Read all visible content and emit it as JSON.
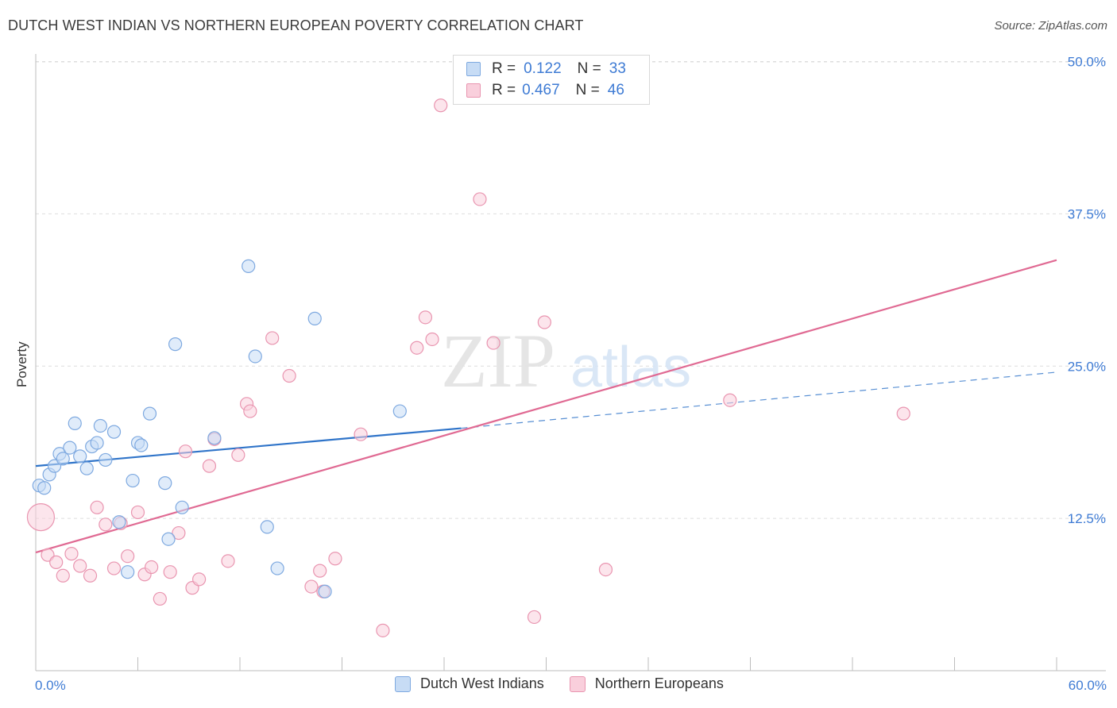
{
  "header": {
    "title": "DUTCH WEST INDIAN VS NORTHERN EUROPEAN POVERTY CORRELATION CHART",
    "source": "Source: ZipAtlas.com"
  },
  "legend": {
    "series1": {
      "r_label": "R =",
      "r_value": "0.122",
      "n_label": "N =",
      "n_value": "33"
    },
    "series2": {
      "r_label": "R =",
      "r_value": "0.467",
      "n_label": "N =",
      "n_value": "46"
    }
  },
  "bottom_legend": {
    "series1_label": "Dutch West Indians",
    "series2_label": "Northern Europeans"
  },
  "watermark": {
    "zip": "ZIP",
    "atlas": "atlas"
  },
  "colors": {
    "blue_fill": "#c7dcf5",
    "blue_stroke": "#7ea9e0",
    "blue_line": "#2f74c9",
    "pink_fill": "#f9cfdc",
    "pink_stroke": "#e995b0",
    "pink_line": "#e06a93",
    "tick_text": "#3e7bd4"
  },
  "chart_data": {
    "type": "scatter",
    "title": "DUTCH WEST INDIAN VS NORTHERN EUROPEAN POVERTY CORRELATION CHART",
    "xlabel": "",
    "ylabel": "Poverty",
    "xlim": [
      0,
      60
    ],
    "ylim": [
      0,
      52
    ],
    "x_tick_labels": [
      "0.0%",
      "60.0%"
    ],
    "y_ticks": [
      12.5,
      25.0,
      37.5,
      50.0
    ],
    "y_tick_labels": [
      "12.5%",
      "25.0%",
      "37.5%",
      "50.0%"
    ],
    "grid": true,
    "legend_position": "top-center",
    "series": [
      {
        "name": "Dutch West Indians",
        "r": 0.122,
        "n": 33,
        "trend": {
          "x0": 0,
          "y0": 16.8,
          "x1": 25,
          "y1": 19.9,
          "dashed_to_x": 60,
          "dashed_to_y": 24.5
        },
        "points": [
          [
            0.2,
            15.2
          ],
          [
            0.5,
            15.0
          ],
          [
            0.8,
            16.1
          ],
          [
            1.1,
            16.8
          ],
          [
            1.4,
            17.8
          ],
          [
            1.6,
            17.4
          ],
          [
            2.0,
            18.3
          ],
          [
            2.3,
            20.3
          ],
          [
            2.6,
            17.6
          ],
          [
            3.0,
            16.6
          ],
          [
            3.3,
            18.4
          ],
          [
            3.6,
            18.7
          ],
          [
            3.8,
            20.1
          ],
          [
            4.1,
            17.3
          ],
          [
            4.6,
            19.6
          ],
          [
            4.9,
            12.2
          ],
          [
            5.4,
            8.1
          ],
          [
            5.7,
            15.6
          ],
          [
            6.0,
            18.7
          ],
          [
            6.2,
            18.5
          ],
          [
            6.7,
            21.1
          ],
          [
            7.6,
            15.4
          ],
          [
            7.8,
            10.8
          ],
          [
            8.2,
            26.8
          ],
          [
            8.6,
            13.4
          ],
          [
            10.5,
            19.1
          ],
          [
            12.5,
            33.2
          ],
          [
            12.9,
            25.8
          ],
          [
            13.6,
            11.8
          ],
          [
            14.2,
            8.4
          ],
          [
            16.4,
            28.9
          ],
          [
            17.0,
            6.5
          ],
          [
            21.4,
            21.3
          ]
        ]
      },
      {
        "name": "Northern Europeans",
        "r": 0.467,
        "n": 46,
        "trend": {
          "x0": 0,
          "y0": 9.7,
          "x1": 60,
          "y1": 33.7
        },
        "points": [
          [
            0.3,
            12.6
          ],
          [
            0.7,
            9.5
          ],
          [
            1.2,
            8.9
          ],
          [
            1.6,
            7.8
          ],
          [
            2.1,
            9.6
          ],
          [
            2.6,
            8.6
          ],
          [
            3.2,
            7.8
          ],
          [
            3.6,
            13.4
          ],
          [
            4.1,
            12.0
          ],
          [
            4.6,
            8.4
          ],
          [
            5.0,
            12.1
          ],
          [
            5.4,
            9.4
          ],
          [
            6.0,
            13.0
          ],
          [
            6.4,
            7.9
          ],
          [
            6.8,
            8.5
          ],
          [
            7.3,
            5.9
          ],
          [
            7.9,
            8.1
          ],
          [
            8.4,
            11.3
          ],
          [
            8.8,
            18.0
          ],
          [
            9.2,
            6.8
          ],
          [
            9.6,
            7.5
          ],
          [
            10.2,
            16.8
          ],
          [
            10.5,
            19.0
          ],
          [
            11.3,
            9.0
          ],
          [
            11.9,
            17.7
          ],
          [
            12.4,
            21.9
          ],
          [
            12.6,
            21.3
          ],
          [
            13.9,
            27.3
          ],
          [
            14.9,
            24.2
          ],
          [
            16.2,
            6.9
          ],
          [
            16.7,
            8.2
          ],
          [
            16.9,
            6.5
          ],
          [
            17.6,
            9.2
          ],
          [
            19.1,
            19.4
          ],
          [
            20.4,
            3.3
          ],
          [
            22.4,
            26.5
          ],
          [
            22.9,
            29.0
          ],
          [
            23.3,
            27.2
          ],
          [
            23.8,
            46.4
          ],
          [
            26.1,
            38.7
          ],
          [
            26.9,
            26.9
          ],
          [
            29.3,
            4.4
          ],
          [
            29.9,
            28.6
          ],
          [
            33.5,
            8.3
          ],
          [
            40.8,
            22.2
          ],
          [
            51.0,
            21.1
          ]
        ]
      }
    ]
  }
}
